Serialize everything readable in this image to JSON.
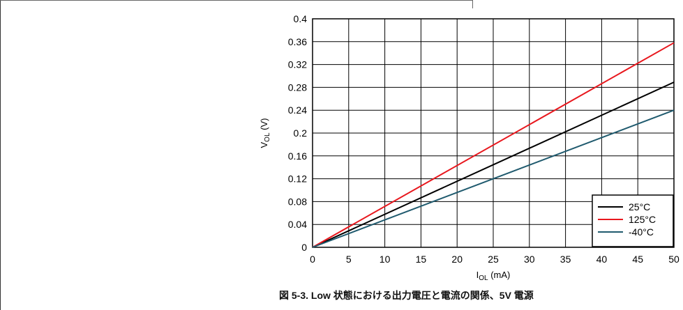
{
  "chart_data": {
    "type": "line",
    "xlabel": {
      "main": "I",
      "sub": "OL",
      "unit": " (mA)"
    },
    "ylabel": {
      "main": "V",
      "sub": "OL",
      "unit": " (V)"
    },
    "xlim": [
      0,
      50
    ],
    "ylim": [
      0,
      0.4
    ],
    "x_ticks": [
      "0",
      "5",
      "10",
      "15",
      "20",
      "25",
      "30",
      "35",
      "40",
      "45",
      "50"
    ],
    "y_ticks": [
      "0",
      "0.04",
      "0.08",
      "0.12",
      "0.16",
      "0.2",
      "0.24",
      "0.28",
      "0.32",
      "0.36",
      "0.4"
    ],
    "grid": true,
    "legend_position": "bottom-right",
    "series": [
      {
        "name": "25°C",
        "color": "#000000",
        "x": [
          0,
          50
        ],
        "y": [
          0,
          0.289
        ]
      },
      {
        "name": "125°C",
        "color": "#e8171d",
        "x": [
          0,
          50
        ],
        "y": [
          0,
          0.358
        ]
      },
      {
        "name": "-40°C",
        "color": "#1f5a6e",
        "x": [
          0,
          50
        ],
        "y": [
          0,
          0.24
        ]
      }
    ]
  },
  "caption": {
    "text": "図 5-3. Low 状態における出力電圧と電流の関係、5V 電源"
  }
}
